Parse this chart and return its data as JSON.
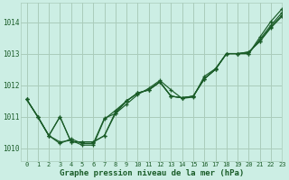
{
  "background_color": "#cceee4",
  "grid_color": "#aaccbb",
  "line_color": "#1a5c28",
  "xlabel": "Graphe pression niveau de la mer (hPa)",
  "ylim": [
    1009.6,
    1014.6
  ],
  "xlim": [
    -0.5,
    23
  ],
  "yticks": [
    1010,
    1011,
    1012,
    1013,
    1014
  ],
  "xticks": [
    0,
    1,
    2,
    3,
    4,
    5,
    6,
    7,
    8,
    9,
    10,
    11,
    12,
    13,
    14,
    15,
    16,
    17,
    18,
    19,
    20,
    21,
    22,
    23
  ],
  "series": [
    [
      1011.55,
      1011.0,
      1010.4,
      1011.0,
      1010.25,
      1010.25,
      1010.15,
      1010.4,
      1011.15,
      1011.55,
      1011.75,
      1011.85,
      1012.1,
      1011.65,
      1011.6,
      1011.65,
      1012.2,
      1012.45,
      1013.0,
      1013.0,
      1013.05,
      1013.4,
      1013.85,
      1014.25
    ],
    [
      1011.55,
      1011.0,
      1010.4,
      1011.0,
      1010.25,
      1010.25,
      1010.15,
      1010.4,
      1011.15,
      1011.55,
      1011.75,
      1011.85,
      1012.1,
      1011.65,
      1011.6,
      1011.65,
      1012.2,
      1012.45,
      1013.0,
      1013.0,
      1013.05,
      1013.45,
      1013.9,
      1014.3
    ],
    [
      1011.55,
      1011.0,
      1010.4,
      1010.2,
      1010.25,
      1010.1,
      1010.1,
      1010.95,
      1011.3,
      1011.55,
      1011.75,
      1011.85,
      1012.1,
      1011.65,
      1011.6,
      1011.65,
      1012.2,
      1012.45,
      1013.0,
      1013.0,
      1013.0,
      1013.45,
      1013.9,
      1014.3
    ],
    [
      1011.55,
      1011.0,
      1010.4,
      1010.15,
      1010.25,
      1010.1,
      1010.1,
      1010.95,
      1011.2,
      1011.5,
      1011.75,
      1011.85,
      1012.15,
      1011.65,
      1011.6,
      1011.65,
      1012.2,
      1012.45,
      1013.0,
      1013.0,
      1013.0,
      1013.35,
      1013.7,
      1014.18
    ]
  ],
  "series2_diverge": [
    [
      1011.55,
      1011.0,
      1010.4,
      1011.0,
      1010.25,
      1010.25,
      1010.15,
      1010.4,
      1011.15,
      1011.55,
      1011.75,
      1011.85,
      1012.1,
      1011.65,
      1011.6,
      1011.65,
      1012.2,
      1012.45,
      1013.0,
      1013.0,
      1013.05,
      1013.4,
      1013.85,
      1014.25
    ],
    [
      1011.55,
      1011.0,
      1010.38,
      1010.2,
      1010.28,
      1010.1,
      1010.38,
      1010.9,
      1011.15,
      1011.45,
      1011.7,
      1011.9,
      1012.15,
      1011.85,
      1011.58,
      1011.62,
      1012.25,
      1012.5,
      1013.0,
      1013.0,
      1013.0,
      1013.5,
      1014.0,
      1014.4
    ]
  ]
}
